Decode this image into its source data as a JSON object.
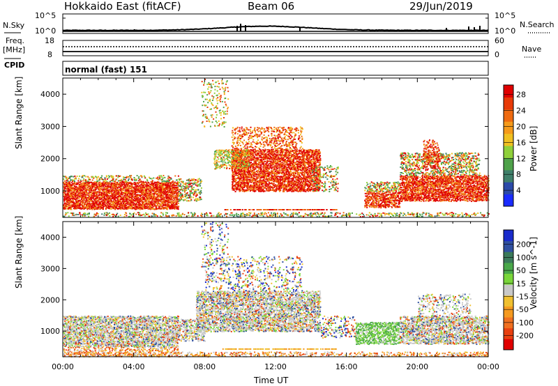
{
  "header": {
    "radar": "Hokkaido East (fitACF)",
    "beam": "Beam 06",
    "date": "29/Jun/2019"
  },
  "top_panels": {
    "nsky_label": "N.Sky",
    "nsearch_label": "N.Search",
    "freq_label_1": "Freq.",
    "freq_label_2": "[MHz]",
    "nave_label": "Nave",
    "cpid_label": "CPID",
    "cpid_value": "normal (fast) 151",
    "noise_ticks_left": [
      "10^5",
      "10^0"
    ],
    "noise_ticks_right": [
      "10^5",
      "10^0"
    ],
    "freq_ticks": [
      "18",
      "8"
    ],
    "nave_ticks": [
      "60",
      "0"
    ]
  },
  "chart_data": [
    {
      "type": "heatmap",
      "name": "power-panel",
      "ylabel": "Slant Range [km]",
      "xlabel": "Time UT",
      "xticks": [
        "00:00",
        "04:00",
        "08:00",
        "12:00",
        "16:00",
        "20:00",
        "00:00"
      ],
      "yticks": [
        "1000",
        "2000",
        "3000",
        "4000"
      ],
      "ylim": [
        180,
        4500
      ],
      "xlim_hours": [
        0,
        24
      ],
      "colorbar_label": "Power [dB]",
      "colorbar_ticks": [
        "4",
        "8",
        "12",
        "16",
        "20",
        "24",
        "28"
      ],
      "colorbar_colors": [
        "#1a2bff",
        "#2b4aa8",
        "#3f7f6a",
        "#4fa24a",
        "#8fd03a",
        "#f0c020",
        "#f59a1a",
        "#ee6a10",
        "#e83a08",
        "#e00000"
      ]
    },
    {
      "type": "heatmap",
      "name": "velocity-panel",
      "ylabel": "Slant Range [km]",
      "xlabel": "Time UT",
      "xticks": [
        "00:00",
        "04:00",
        "08:00",
        "12:00",
        "16:00",
        "20:00",
        "00:00"
      ],
      "yticks": [
        "1000",
        "2000",
        "3000",
        "4000"
      ],
      "ylim": [
        180,
        4500
      ],
      "xlim_hours": [
        0,
        24
      ],
      "colorbar_label": "Velocity [m s^-1]",
      "colorbar_ticks": [
        "200",
        "100",
        "50",
        "15",
        "-15",
        "-50",
        "-100",
        "-200"
      ],
      "colorbar_colors": [
        "#1a2bcc",
        "#3050a0",
        "#3b7a5a",
        "#4aa84a",
        "#7ad63a",
        "#c8c8c8",
        "#f0c030",
        "#f59a20",
        "#f07020",
        "#e84010",
        "#e00000"
      ]
    }
  ],
  "xlabel": "Time UT"
}
